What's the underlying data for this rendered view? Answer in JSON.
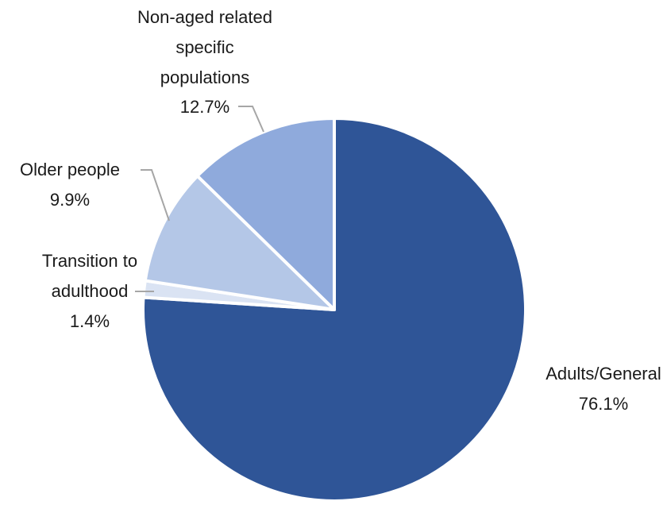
{
  "chart_data": {
    "type": "pie",
    "title": "",
    "slices": [
      {
        "label": "Adults/General",
        "value": 76.1,
        "value_label": "76.1%",
        "color": "#2f5597"
      },
      {
        "label": "Transition to adulthood",
        "value": 1.4,
        "value_label": "1.4%",
        "color": "#dae3f3"
      },
      {
        "label": "Older people",
        "value": 9.9,
        "value_label": "9.9%",
        "color": "#b4c7e7"
      },
      {
        "label": "Non-aged related specific populations",
        "value": 12.7,
        "value_label": "12.7%",
        "color": "#8faadc"
      }
    ],
    "start_angle": "12 o'clock",
    "direction": "clockwise",
    "legend": "none",
    "label_placement": "outside with leader lines"
  }
}
